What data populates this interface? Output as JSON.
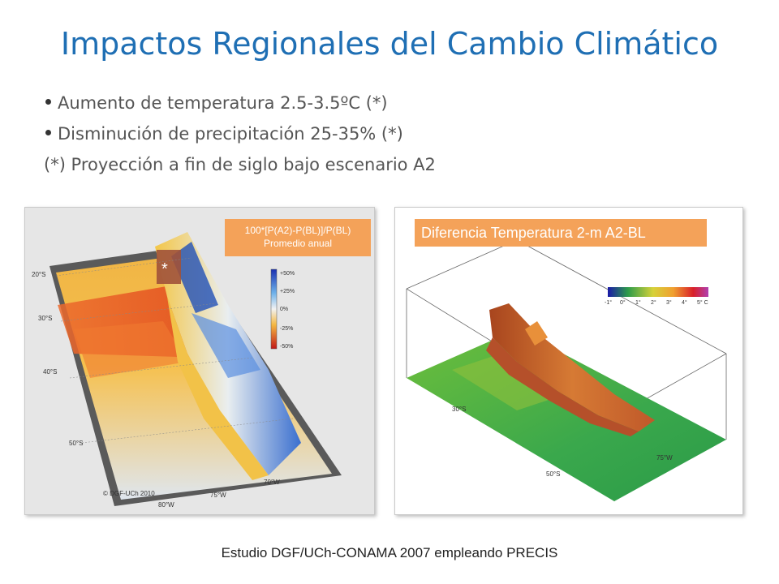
{
  "title": "Impactos Regionales del Cambio Climático",
  "bullets": [
    {
      "text": "Aumento de temperatura 2.5-3.5ºC (*)"
    },
    {
      "text": "Disminución de precipitación 25-35% (*)"
    }
  ],
  "note": "(*) Proyección a fin de siglo bajo escenario A2",
  "left_panel": {
    "label_line1": "100*[P(A2)-P(BL)]/P(BL)",
    "label_line2": "Promedio anual",
    "scale": [
      "+50%",
      "+25%",
      "0%",
      "-25%",
      "-50%"
    ],
    "lat_labels": [
      "20°S",
      "30°S",
      "40°S",
      "50°S"
    ],
    "lon_labels": [
      "80°W",
      "75°W",
      "70°W"
    ],
    "marker": "*",
    "credit": "© DGF-UCh 2010",
    "colors": {
      "wet": "#2255cc",
      "dry": "#e0401a",
      "neutral": "#f2d26a"
    }
  },
  "right_panel": {
    "label": "Diferencia Temperatura 2-m A2-BL",
    "scale": [
      "-1°",
      "0°",
      "1°",
      "2°",
      "3°",
      "4°",
      "5° C"
    ],
    "lat_labels": [
      "30°S",
      "50°S"
    ],
    "lon_labels": [
      "75°W"
    ],
    "colors": {
      "ocean": "#2fa84f",
      "terrain": "#c8662a"
    }
  },
  "footer": "Estudio DGF/UCh-CONAMA 2007 empleando PRECIS"
}
